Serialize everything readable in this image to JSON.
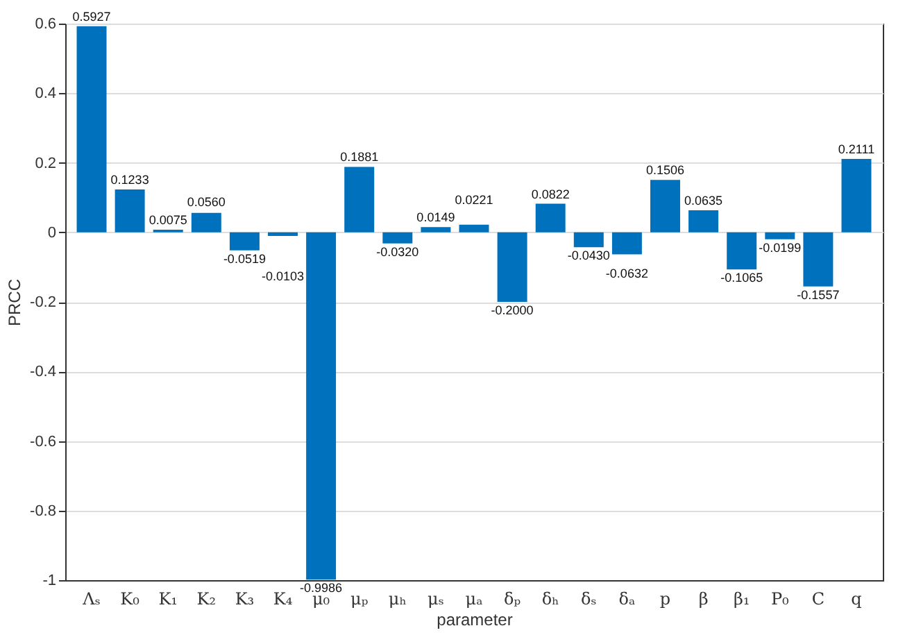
{
  "chart_data": {
    "type": "bar",
    "xlabel": "parameter",
    "ylabel": "PRCC",
    "categories": [
      "Λₛ",
      "K₀",
      "K₁",
      "K₂",
      "K₃",
      "K₄",
      "μ₀",
      "μₚ",
      "μₕ",
      "μₛ",
      "μₐ",
      "δₚ",
      "δₕ",
      "δₛ",
      "δₐ",
      "p",
      "β",
      "β₁",
      "P₀",
      "C",
      "q"
    ],
    "values": [
      0.5927,
      0.1233,
      0.0075,
      0.056,
      -0.0519,
      -0.0103,
      -0.9986,
      0.1881,
      -0.032,
      0.0149,
      0.0221,
      -0.2,
      0.0822,
      -0.043,
      -0.0632,
      0.1506,
      0.0635,
      -0.1065,
      -0.0199,
      -0.1557,
      0.2111
    ],
    "value_labels": [
      "0.5927",
      "0.1233",
      "0.0075",
      "0.0560",
      "-0.0519",
      "-0.0103",
      "-0.9986",
      "0.1881",
      "-0.0320",
      "0.0149",
      "0.0221",
      "-0.2000",
      "0.0822",
      "-0.0430",
      "-0.0632",
      "0.1506",
      "0.0635",
      "-0.1065",
      "-0.0199",
      "-0.1557",
      "0.2111"
    ],
    "color": "#0072bd",
    "ylim": [
      -1,
      0.6
    ],
    "yticks": [
      -1,
      -0.8,
      -0.6,
      -0.4,
      -0.2,
      0,
      0.2,
      0.4,
      0.6
    ],
    "grid": "y"
  }
}
